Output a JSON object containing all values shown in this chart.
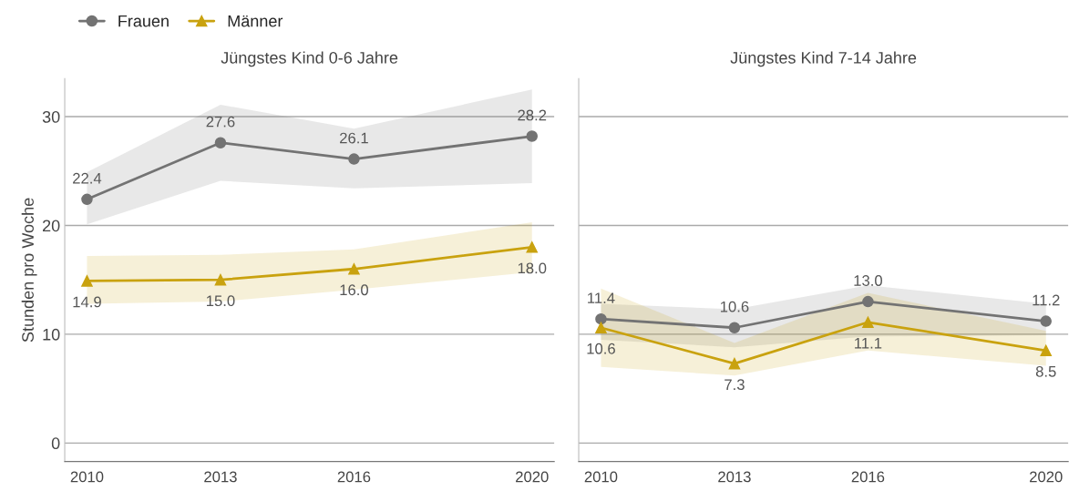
{
  "chart_data": [
    {
      "type": "line",
      "title": "Jüngstes Kind 0-6 Jahre",
      "ylabel": "Stunden pro Woche",
      "x": [
        2010,
        2013,
        2016,
        2020
      ],
      "xlim": [
        2009.5,
        2020.5
      ],
      "xticks": [
        2010,
        2013,
        2016,
        2020
      ],
      "ylim": [
        -1.7,
        33.5
      ],
      "yticks": [
        0,
        10,
        20,
        30
      ],
      "grid": "y",
      "legend": "top left",
      "series": [
        {
          "name": "Frauen",
          "color": "#737373",
          "marker": "circle",
          "values": [
            22.4,
            27.6,
            26.1,
            28.2
          ],
          "value_labels": [
            "22.4",
            "27.6",
            "26.1",
            "28.2"
          ],
          "lower": [
            20.1,
            24.1,
            23.4,
            23.9
          ],
          "upper": [
            24.9,
            31.1,
            28.9,
            32.5
          ]
        },
        {
          "name": "Männer",
          "color": "#c9a20f",
          "marker": "triangle",
          "values": [
            14.9,
            15.0,
            16.0,
            18.0
          ],
          "value_labels": [
            "14.9",
            "15.0",
            "16.0",
            "18.0"
          ],
          "lower": [
            12.8,
            13.0,
            14.1,
            15.7
          ],
          "upper": [
            17.2,
            17.3,
            17.8,
            20.3
          ]
        }
      ]
    },
    {
      "type": "line",
      "title": "Jüngstes Kind 7-14 Jahre",
      "x": [
        2010,
        2013,
        2016,
        2020
      ],
      "xlim": [
        2009.5,
        2020.5
      ],
      "xticks": [
        2010,
        2013,
        2016,
        2020
      ],
      "ylim": [
        -1.7,
        33.5
      ],
      "yticks": [
        0,
        10,
        20,
        30
      ],
      "tick_labels": "x",
      "grid": "y",
      "series": [
        {
          "name": "Frauen",
          "color": "#737373",
          "marker": "circle",
          "values": [
            11.4,
            10.6,
            13.0,
            11.2
          ],
          "value_labels": [
            "11.4",
            "10.6",
            "13.0",
            "11.2"
          ],
          "lower": [
            9.5,
            8.8,
            9.8,
            9.9
          ],
          "upper": [
            12.8,
            12.3,
            14.5,
            12.8
          ]
        },
        {
          "name": "Männer",
          "color": "#c9a20f",
          "marker": "triangle",
          "values": [
            10.6,
            7.3,
            11.1,
            8.5
          ],
          "value_labels": [
            "10.6",
            "7.3",
            "11.1",
            "8.5"
          ],
          "lower": [
            7.0,
            6.2,
            8.5,
            7.1
          ],
          "upper": [
            14.2,
            9.2,
            13.8,
            10.3
          ]
        }
      ]
    }
  ]
}
